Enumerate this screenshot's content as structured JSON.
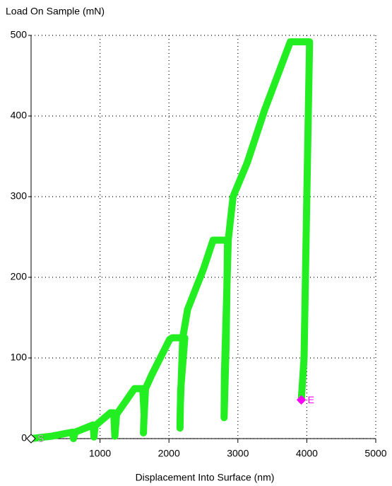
{
  "chart_data": {
    "type": "line",
    "y_label": "Load On Sample (mN)",
    "x_label": "Displacement Into Surface (nm)",
    "x": [
      0,
      300,
      600,
      615,
      640,
      900,
      912,
      930,
      1150,
      1200,
      1208,
      1215,
      1240,
      1500,
      1620,
      1640,
      1630,
      1635,
      1660,
      1750,
      2010,
      2050,
      2230,
      2170,
      2160,
      2165,
      2200,
      2270,
      2500,
      2640,
      2850,
      2830,
      2800,
      2805,
      2860,
      2930,
      3135,
      3390,
      3760,
      4040,
      4000,
      3960,
      3920
    ],
    "values": [
      0,
      3,
      8,
      0,
      8,
      17,
      2,
      16,
      32,
      32,
      15,
      3,
      30,
      62,
      62,
      30,
      7,
      20,
      62,
      79,
      123,
      125,
      125,
      60,
      13,
      40,
      125,
      160,
      210,
      246,
      246,
      120,
      26,
      80,
      246,
      300,
      342,
      408,
      492,
      492,
      300,
      100,
      48
    ],
    "color": "#22ee22",
    "xlim": [
      0,
      5000
    ],
    "xticks": [
      1000,
      2000,
      3000,
      4000,
      5000
    ],
    "ylim": [
      0,
      500
    ],
    "yticks": [
      0,
      100,
      200,
      300,
      400,
      500
    ],
    "grid": true,
    "markers": [
      {
        "label": "S",
        "x": 0,
        "y": 0,
        "color": "#ffffff"
      },
      {
        "label": "E",
        "x": 3920,
        "y": 48,
        "color": "#ff00ff"
      }
    ]
  }
}
